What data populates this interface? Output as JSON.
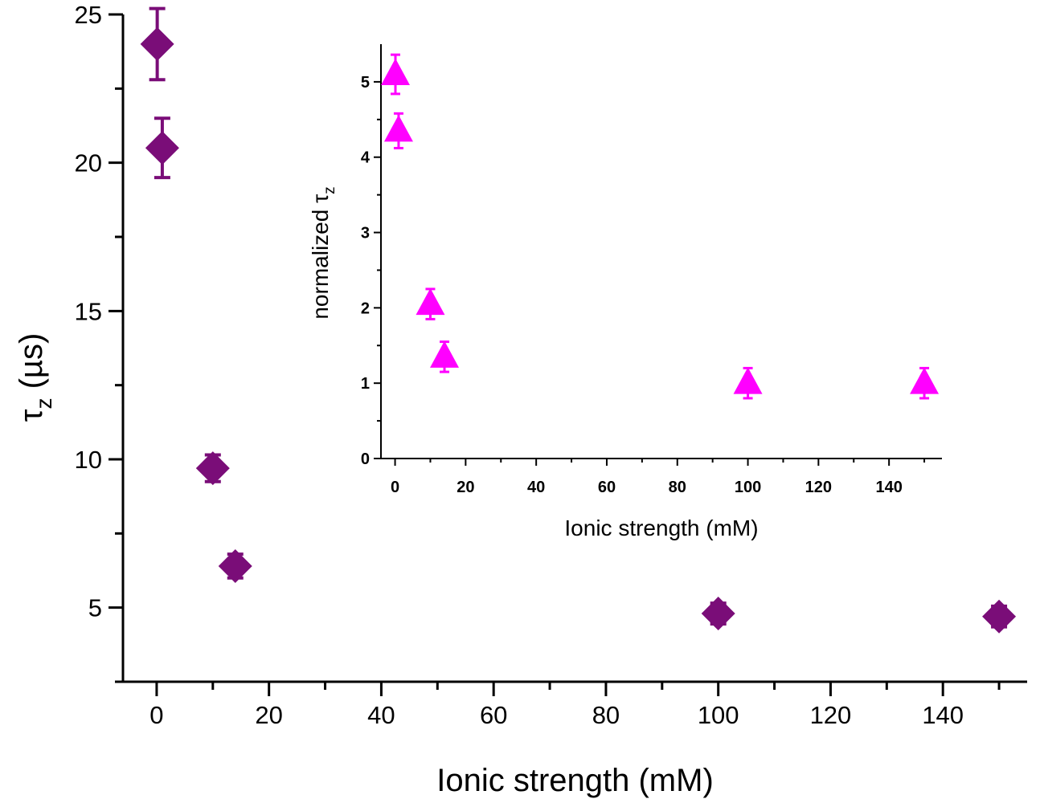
{
  "chart_data": [
    {
      "type": "scatter",
      "role": "main",
      "xlabel": "Ionic strength (mM)",
      "ylabel": "τ",
      "ylabel_sub": "z",
      "ylabel_unit": " (µs)",
      "xlim": [
        -6,
        155
      ],
      "ylim": [
        2.5,
        25
      ],
      "xticks": [
        0,
        20,
        40,
        60,
        80,
        100,
        120,
        140
      ],
      "xminor": [
        10,
        30,
        50,
        70,
        90,
        110,
        130,
        150
      ],
      "yticks": [
        5,
        10,
        15,
        20,
        25
      ],
      "yminor": [
        2.5,
        7.5,
        12.5,
        17.5,
        22.5
      ],
      "marker": "diamond",
      "color": "#7a0d78",
      "series": [
        {
          "name": "tau_z",
          "x": [
            0.1,
            1,
            10,
            14,
            100,
            150
          ],
          "y": [
            24.0,
            20.5,
            9.7,
            6.4,
            4.8,
            4.7
          ],
          "err": [
            1.2,
            1.0,
            0.45,
            0.4,
            0.35,
            0.35
          ]
        }
      ]
    },
    {
      "type": "scatter",
      "role": "inset",
      "xlabel": "Ionic strength (mM)",
      "ylabel": "normalized τ",
      "ylabel_sub": "z",
      "xlim": [
        -4,
        155
      ],
      "ylim": [
        0,
        5.5
      ],
      "xticks": [
        0,
        20,
        40,
        60,
        80,
        100,
        120,
        140
      ],
      "xminor": [
        10,
        30,
        50,
        70,
        90,
        110,
        130,
        150
      ],
      "yticks": [
        0,
        1,
        2,
        3,
        4,
        5
      ],
      "yminor": [
        0.5,
        1.5,
        2.5,
        3.5,
        4.5
      ],
      "marker": "triangle",
      "color": "#ff00ff",
      "series": [
        {
          "name": "normalized tau_z",
          "x": [
            0.1,
            1,
            10,
            14,
            100,
            150
          ],
          "y": [
            5.1,
            4.35,
            2.05,
            1.35,
            1.0,
            1.0
          ],
          "err": [
            0.26,
            0.23,
            0.2,
            0.2,
            0.2,
            0.2
          ]
        }
      ]
    }
  ]
}
